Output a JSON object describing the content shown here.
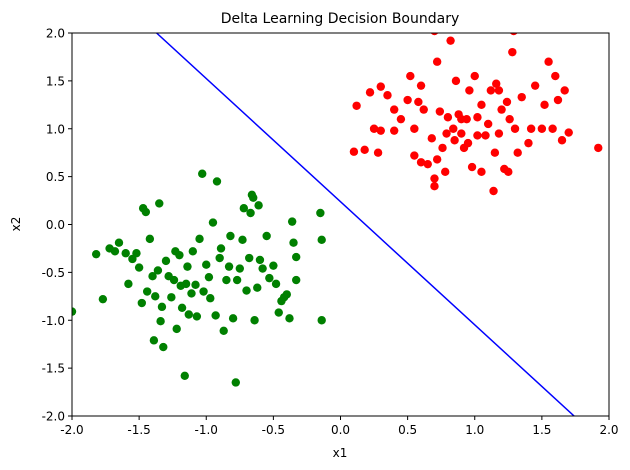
{
  "chart_data": {
    "type": "scatter",
    "title": "Delta Learning Decision Boundary",
    "xlabel": "x1",
    "ylabel": "x2",
    "xlim": [
      -2.0,
      2.0
    ],
    "ylim": [
      -2.0,
      2.0
    ],
    "xticks": [
      "-2.0",
      "-1.5",
      "-1.0",
      "-0.5",
      "0.0",
      "0.5",
      "1.0",
      "1.5",
      "2.0"
    ],
    "yticks": [
      "-2.0",
      "-1.5",
      "-1.0",
      "-0.5",
      "0.0",
      "0.5",
      "1.0",
      "1.5",
      "2.0"
    ],
    "xtick_values": [
      -2.0,
      -1.5,
      -1.0,
      -0.5,
      0.0,
      0.5,
      1.0,
      1.5,
      2.0
    ],
    "ytick_values": [
      -2.0,
      -1.5,
      -1.0,
      -0.5,
      0.0,
      0.5,
      1.0,
      1.5,
      2.0
    ],
    "grid": false,
    "series": [
      {
        "color": "#ff0000",
        "points": [
          [
            0.1,
            0.76
          ],
          [
            0.18,
            0.78
          ],
          [
            0.22,
            1.38
          ],
          [
            0.28,
            0.75
          ],
          [
            0.3,
            1.44
          ],
          [
            0.25,
            1.0
          ],
          [
            0.3,
            0.98
          ],
          [
            0.12,
            1.24
          ],
          [
            0.4,
            0.98
          ],
          [
            0.45,
            1.1
          ],
          [
            0.5,
            1.3
          ],
          [
            0.52,
            1.55
          ],
          [
            0.55,
            1.0
          ],
          [
            0.58,
            1.28
          ],
          [
            0.55,
            0.72
          ],
          [
            0.6,
            0.65
          ],
          [
            0.62,
            1.2
          ],
          [
            0.65,
            0.63
          ],
          [
            0.68,
            0.9
          ],
          [
            0.7,
            0.4
          ],
          [
            0.7,
            0.48
          ],
          [
            0.72,
            0.68
          ],
          [
            0.74,
            1.18
          ],
          [
            0.76,
            0.8
          ],
          [
            0.78,
            0.55
          ],
          [
            0.79,
            0.95
          ],
          [
            0.8,
            1.12
          ],
          [
            0.82,
            1.92
          ],
          [
            0.84,
            1.0
          ],
          [
            0.86,
            1.5
          ],
          [
            0.88,
            1.15
          ],
          [
            0.9,
            0.95
          ],
          [
            0.92,
            0.8
          ],
          [
            0.94,
            1.1
          ],
          [
            0.96,
            1.4
          ],
          [
            0.98,
            0.6
          ],
          [
            1.0,
            1.55
          ],
          [
            1.02,
            0.93
          ],
          [
            1.05,
            1.25
          ],
          [
            1.08,
            0.93
          ],
          [
            1.1,
            1.05
          ],
          [
            1.12,
            1.4
          ],
          [
            1.14,
            0.35
          ],
          [
            1.15,
            0.75
          ],
          [
            1.16,
            1.47
          ],
          [
            1.18,
            1.4
          ],
          [
            1.2,
            1.2
          ],
          [
            1.22,
            0.58
          ],
          [
            1.24,
            1.28
          ],
          [
            1.26,
            1.1
          ],
          [
            1.28,
            1.8
          ],
          [
            1.29,
            2.02
          ],
          [
            1.3,
            1.0
          ],
          [
            1.32,
            0.75
          ],
          [
            1.35,
            1.33
          ],
          [
            1.4,
            0.85
          ],
          [
            1.42,
            1.0
          ],
          [
            1.45,
            1.45
          ],
          [
            1.5,
            1.0
          ],
          [
            1.52,
            1.25
          ],
          [
            1.55,
            1.7
          ],
          [
            1.58,
            1.0
          ],
          [
            1.6,
            1.55
          ],
          [
            1.62,
            1.3
          ],
          [
            1.65,
            0.88
          ],
          [
            1.67,
            1.4
          ],
          [
            1.7,
            0.96
          ],
          [
            1.92,
            0.8
          ],
          [
            0.7,
            2.02
          ],
          [
            0.9,
            1.1
          ],
          [
            0.4,
            1.2
          ],
          [
            1.05,
            0.55
          ],
          [
            1.25,
            0.55
          ],
          [
            0.72,
            1.7
          ],
          [
            1.02,
            1.12
          ],
          [
            0.85,
            0.88
          ],
          [
            0.6,
            1.45
          ],
          [
            0.35,
            1.35
          ],
          [
            1.18,
            0.95
          ],
          [
            0.95,
            0.85
          ]
        ]
      },
      {
        "color": "#008000",
        "points": [
          [
            -2.0,
            -0.91
          ],
          [
            -1.82,
            -0.31
          ],
          [
            -1.77,
            -0.78
          ],
          [
            -1.72,
            -0.25
          ],
          [
            -1.68,
            -0.28
          ],
          [
            -1.65,
            -0.19
          ],
          [
            -1.58,
            -0.62
          ],
          [
            -1.55,
            -0.36
          ],
          [
            -1.52,
            -0.3
          ],
          [
            -1.48,
            -0.82
          ],
          [
            -1.47,
            0.17
          ],
          [
            -1.45,
            0.13
          ],
          [
            -1.42,
            -0.15
          ],
          [
            -1.4,
            -0.54
          ],
          [
            -1.39,
            -1.21
          ],
          [
            -1.38,
            -0.75
          ],
          [
            -1.36,
            -0.48
          ],
          [
            -1.35,
            0.22
          ],
          [
            -1.34,
            -1.01
          ],
          [
            -1.33,
            -0.86
          ],
          [
            -1.32,
            -1.28
          ],
          [
            -1.3,
            -0.38
          ],
          [
            -1.28,
            -0.54
          ],
          [
            -1.26,
            -0.76
          ],
          [
            -1.24,
            -0.58
          ],
          [
            -1.23,
            -0.28
          ],
          [
            -1.22,
            -1.09
          ],
          [
            -1.2,
            -0.32
          ],
          [
            -1.19,
            -0.64
          ],
          [
            -1.18,
            -0.87
          ],
          [
            -1.16,
            -1.58
          ],
          [
            -1.15,
            -0.62
          ],
          [
            -1.14,
            -0.44
          ],
          [
            -1.13,
            -0.94
          ],
          [
            -1.11,
            -0.72
          ],
          [
            -1.1,
            -0.28
          ],
          [
            -1.08,
            -0.63
          ],
          [
            -1.07,
            -0.96
          ],
          [
            -1.05,
            -0.15
          ],
          [
            -1.03,
            0.53
          ],
          [
            -1.02,
            -0.7
          ],
          [
            -1.0,
            -0.42
          ],
          [
            -0.98,
            -0.55
          ],
          [
            -0.97,
            -0.77
          ],
          [
            -0.95,
            0.02
          ],
          [
            -0.93,
            -0.95
          ],
          [
            -0.92,
            0.45
          ],
          [
            -0.9,
            -0.35
          ],
          [
            -0.89,
            -0.25
          ],
          [
            -0.87,
            -1.11
          ],
          [
            -0.85,
            -0.58
          ],
          [
            -0.83,
            -0.44
          ],
          [
            -0.82,
            -0.12
          ],
          [
            -0.8,
            -0.98
          ],
          [
            -0.78,
            -1.65
          ],
          [
            -0.77,
            -0.58
          ],
          [
            -0.75,
            -0.46
          ],
          [
            -0.73,
            -0.16
          ],
          [
            -0.72,
            0.17
          ],
          [
            -0.7,
            -0.69
          ],
          [
            -0.68,
            -0.35
          ],
          [
            -0.67,
            0.12
          ],
          [
            -0.66,
            0.31
          ],
          [
            -0.65,
            0.28
          ],
          [
            -0.64,
            -1.0
          ],
          [
            -0.62,
            -0.66
          ],
          [
            -0.61,
            0.2
          ],
          [
            -0.6,
            -0.37
          ],
          [
            -0.58,
            -0.46
          ],
          [
            -0.55,
            -0.12
          ],
          [
            -0.53,
            -0.56
          ],
          [
            -0.5,
            -0.43
          ],
          [
            -0.48,
            -0.62
          ],
          [
            -0.46,
            -0.92
          ],
          [
            -0.44,
            -0.8
          ],
          [
            -0.42,
            -0.76
          ],
          [
            -0.4,
            -0.73
          ],
          [
            -0.38,
            -0.98
          ],
          [
            -0.36,
            0.03
          ],
          [
            -0.35,
            -0.19
          ],
          [
            -0.33,
            -0.34
          ],
          [
            -0.33,
            -0.58
          ],
          [
            -0.15,
            0.12
          ],
          [
            -0.14,
            -0.16
          ],
          [
            -0.14,
            -1.0
          ],
          [
            -1.6,
            -0.3
          ],
          [
            -1.5,
            -0.45
          ],
          [
            -1.44,
            -0.7
          ]
        ]
      }
    ],
    "line": {
      "color": "#0000ff",
      "points": [
        [
          -1.37,
          2.0
        ],
        [
          1.74,
          -2.0
        ]
      ]
    }
  }
}
